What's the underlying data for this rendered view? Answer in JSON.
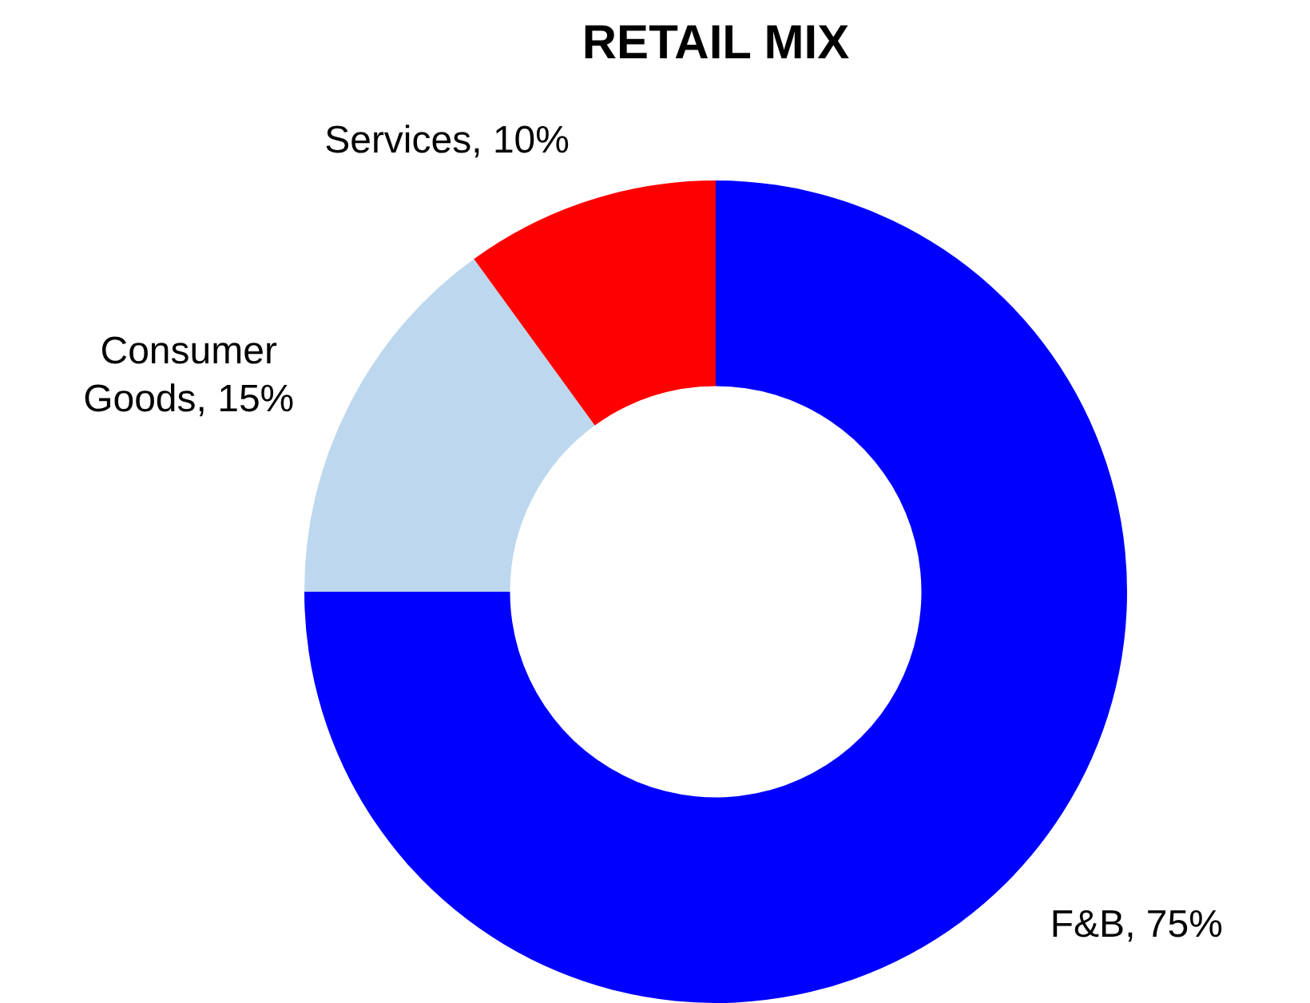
{
  "chart_data": {
    "type": "donut",
    "title": "RETAIL MIX",
    "categories": [
      "F&B",
      "Consumer Goods",
      "Services"
    ],
    "values": [
      75,
      15,
      10
    ],
    "value_labels": [
      "75%",
      "15%",
      "10%"
    ],
    "colors": [
      "#0000ff",
      "#bdd7ee",
      "#ff0000"
    ],
    "legend": false
  }
}
